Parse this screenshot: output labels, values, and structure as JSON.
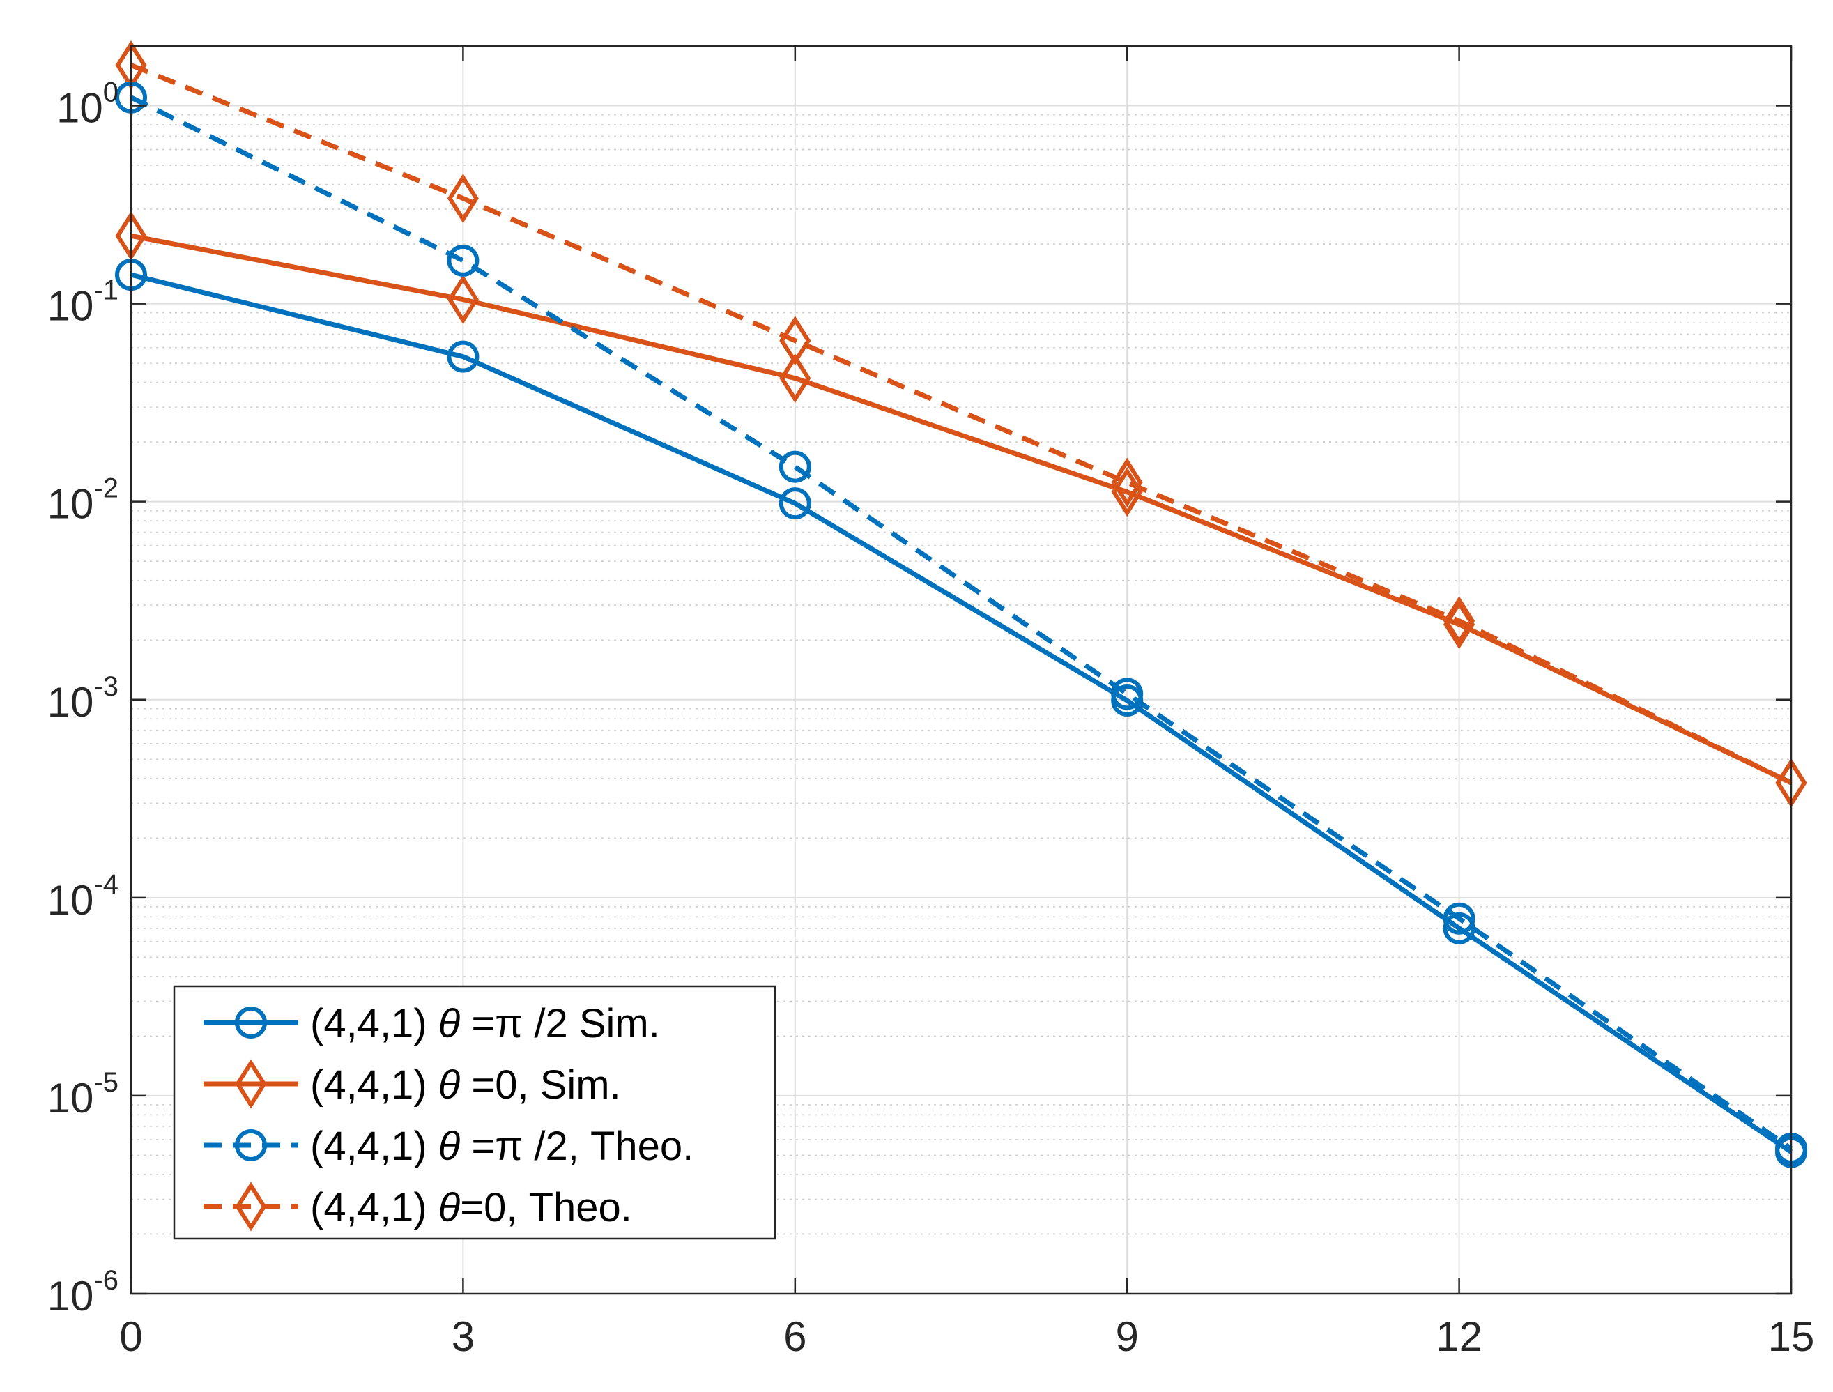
{
  "chart_data": {
    "type": "line",
    "title": "",
    "xlabel": "",
    "ylabel": "",
    "yscale": "log",
    "xlim": [
      0,
      15
    ],
    "ylim": [
      1e-06,
      2
    ],
    "grid": true,
    "minor_grid": true,
    "legend_position": "bottom-left",
    "x_ticks": [
      0,
      3,
      6,
      9,
      12,
      15
    ],
    "y_ticks": [
      {
        "value": 1,
        "base": "10",
        "exp": "0"
      },
      {
        "value": 0.1,
        "base": "10",
        "exp": "-1"
      },
      {
        "value": 0.01,
        "base": "10",
        "exp": "-2"
      },
      {
        "value": 0.001,
        "base": "10",
        "exp": "-3"
      },
      {
        "value": 0.0001,
        "base": "10",
        "exp": "-4"
      },
      {
        "value": 1e-05,
        "base": "10",
        "exp": "-5"
      },
      {
        "value": 1e-06,
        "base": "10",
        "exp": "-6"
      }
    ],
    "x": [
      0,
      3,
      6,
      9,
      12,
      15
    ],
    "series": [
      {
        "name": "(4,4,1) θ =π /2 Sim.",
        "legend_parts": [
          "(4,4,1) ",
          "θ",
          " =",
          "π",
          " /2 Sim."
        ],
        "color": "#0072BD",
        "dash": "solid",
        "marker": "circle",
        "values": [
          0.14,
          0.054,
          0.0098,
          0.00099,
          7e-05,
          5.2e-06
        ]
      },
      {
        "name": "(4,4,1) θ =0, Sim.",
        "legend_parts": [
          "(4,4,1) ",
          "θ",
          " =0, Sim."
        ],
        "color": "#D95319",
        "dash": "solid",
        "marker": "diamond",
        "values": [
          0.22,
          0.105,
          0.042,
          0.0112,
          0.0024,
          0.00038
        ]
      },
      {
        "name": "(4,4,1) θ =π /2, Theo.",
        "legend_parts": [
          "(4,4,1) ",
          "θ",
          " =",
          "π",
          " /2, Theo."
        ],
        "color": "#0072BD",
        "dash": "dashed",
        "marker": "circle",
        "values": [
          1.1,
          0.165,
          0.015,
          0.00107,
          7.85e-05,
          5.4e-06
        ]
      },
      {
        "name": "(4,4,1) θ=0, Theo.",
        "legend_parts": [
          "(4,4,1) ",
          "θ",
          "=0, Theo."
        ],
        "color": "#D95319",
        "dash": "dashed",
        "marker": "diamond",
        "values": [
          1.6,
          0.34,
          0.065,
          0.0125,
          0.0025,
          0.00038
        ]
      }
    ]
  }
}
